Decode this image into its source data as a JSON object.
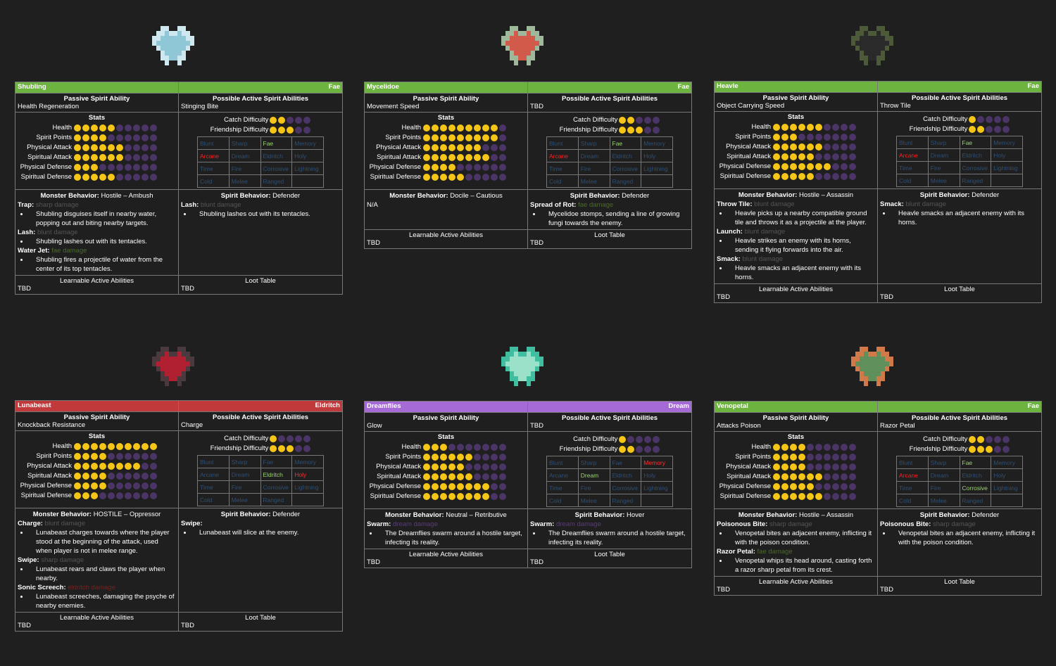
{
  "labels": {
    "passive": "Passive Spirit Ability",
    "active": "Possible Active Spirit Abilities",
    "stats": "Stats",
    "health": "Health",
    "spirit_points": "Spirit Points",
    "physical_attack": "Physical Attack",
    "spiritual_attack": "Spiritual Attack",
    "physical_defense": "Physical Defense",
    "spiritual_defense": "Spiritual Defense",
    "catch": "Catch Difficulty",
    "friendship": "Friendship Difficulty",
    "monster_behavior": "Monster Behavior:",
    "spirit_behavior": "Spirit Behavior:",
    "learnable": "Learnable Active Abilities",
    "loot": "Loot Table",
    "types": [
      "Blunt",
      "Sharp",
      "Fae",
      "Memory",
      "Arcane",
      "Dream",
      "Eldritch",
      "Holy",
      "Time",
      "Fire",
      "Corrosive",
      "Lightning",
      "Cold",
      "Melee",
      "Ranged"
    ]
  },
  "colors": {
    "fae": "#6db33f",
    "eldritch": "#c0393b",
    "dream": "#a56ad6",
    "dot_on": "#f5c517",
    "dot_off": "#4a3566"
  },
  "monsters": [
    {
      "name": "Shubling",
      "type": "Fae",
      "passive": "Health Regeneration",
      "active": "Stinging Bite",
      "stats": [
        5,
        4,
        6,
        6,
        3,
        5
      ],
      "catch": 2,
      "friendship": 3,
      "active_types": [
        "Fae",
        "Arcane"
      ],
      "monster_behavior": "Hostile – Ambush",
      "monster_moves": [
        {
          "name": "Trap:",
          "dmg": "sharp damage",
          "desc": "Shubling disguises itself in nearby water, popping out and biting nearby targets."
        },
        {
          "name": "Lash:",
          "dmg": "blunt damage",
          "desc": "Shubling lashes out with its tentacles."
        },
        {
          "name": "Water Jet:",
          "dmg": "fae damage",
          "desc": "Shubling fires a projectile of water from the center of its top tentacles."
        }
      ],
      "spirit_behavior": "Defender",
      "spirit_moves": [
        {
          "name": "Lash:",
          "dmg": "blunt damage",
          "desc": "Shubling lashes out with its tentacles."
        }
      ],
      "learnable": "TBD",
      "loot": "TBD"
    },
    {
      "name": "Mycelidoe",
      "type": "Fae",
      "passive": "Movement Speed",
      "active": "TBD",
      "stats": [
        9,
        9,
        7,
        8,
        4,
        5
      ],
      "catch": 2,
      "friendship": 3,
      "active_types": [
        "Fae",
        "Arcane"
      ],
      "monster_behavior": "Docile – Cautious",
      "monster_moves": [],
      "monster_na": "N/A",
      "spirit_behavior": "Defender",
      "spirit_moves": [
        {
          "name": "Spread of Rot:",
          "dmg": "fae damage",
          "desc": "Mycelidoe stomps, sending a line of growing fungi towards the enemy."
        }
      ],
      "learnable": "TBD",
      "loot": "TBD"
    },
    {
      "name": "Heavle",
      "type": "Fae",
      "passive": "Object Carrying Speed",
      "active": "Throw Tile",
      "stats": [
        6,
        3,
        6,
        5,
        7,
        5
      ],
      "catch": 1,
      "friendship": 2,
      "active_types": [
        "Fae",
        "Arcane"
      ],
      "monster_behavior": "Hostile – Assassin",
      "monster_moves": [
        {
          "name": "Throw Tile:",
          "dmg": "blunt damage",
          "desc": "Heavle picks up a nearby compatible ground tile and throws it as a projectile at the player."
        },
        {
          "name": "Launch:",
          "dmg": "blunt damage",
          "desc": "Heavle strikes an enemy with its horns, sending it flying forwards into the air."
        },
        {
          "name": "Smack:",
          "dmg": "blunt damage",
          "desc": "Heavle smacks an adjacent enemy with its horns."
        }
      ],
      "spirit_behavior": "Defender",
      "spirit_moves": [
        {
          "name": "Smack:",
          "dmg": "blunt damage",
          "desc": "Heavle smacks an adjacent enemy with its horns."
        }
      ],
      "learnable": "TBD",
      "loot": "TBD"
    },
    {
      "name": "Lunabeast",
      "type": "Eldritch",
      "passive": "Knockback Resistance",
      "active": "Charge",
      "stats": [
        10,
        4,
        8,
        4,
        4,
        3
      ],
      "catch": 1,
      "friendship": 3,
      "active_types": [
        "Eldritch",
        "Holy"
      ],
      "monster_behavior": "HOSTILE – Oppressor",
      "monster_moves": [
        {
          "name": "Charge:",
          "dmg": "blunt damage",
          "desc": "Lunabeast charges towards where the player stood at the beginning of the attack, used when player is not in melee range."
        },
        {
          "name": "Swipe:",
          "dmg": "sharp damage",
          "desc": "Lunabeast rears and claws the player when nearby."
        },
        {
          "name": "Sonic Screech:",
          "dmg": "eldritch damage",
          "desc": "Lunabeast screeches, damaging the psyche of nearby enemies."
        }
      ],
      "spirit_behavior": "Defender",
      "spirit_moves": [
        {
          "name": "Swipe:",
          "dmg": "",
          "desc": "Lunabeast will slice at the enemy."
        }
      ],
      "learnable": "TBD",
      "loot": "TBD"
    },
    {
      "name": "Dreamflies",
      "type": "Dream",
      "passive": "Glow",
      "active": "TBD",
      "stats": [
        3,
        6,
        5,
        6,
        8,
        8
      ],
      "catch": 1,
      "friendship": 2,
      "active_types": [
        "Memory",
        "Dream"
      ],
      "monster_behavior": "Neutral – Retributive",
      "monster_moves": [
        {
          "name": "Swarm:",
          "dmg": "dream damage",
          "desc": "The Dreamflies swarm around a hostile target, infecting its reality."
        }
      ],
      "spirit_behavior": "Hover",
      "spirit_moves": [
        {
          "name": "Swarm:",
          "dmg": "dream damage",
          "desc": "The Dreamflies swarm around a hostile target, infecting its reality."
        }
      ],
      "learnable": "TBD",
      "loot": "TBD"
    },
    {
      "name": "Venopetal",
      "type": "Fae",
      "passive": "Attacks Poison",
      "active": "Razor Petal",
      "stats": [
        4,
        4,
        4,
        6,
        5,
        6
      ],
      "catch": 2,
      "friendship": 3,
      "active_types": [
        "Fae",
        "Arcane",
        "Corrosive"
      ],
      "monster_behavior": "Hostile – Assassin",
      "monster_moves": [
        {
          "name": "Poisonous Bite:",
          "dmg": "sharp damage",
          "desc": "Venopetal bites an adjacent enemy, inflicting it with the poison condition."
        },
        {
          "name": "Razor Petal:",
          "dmg": "fae damage",
          "desc": "Venopetal whips its head around, casting forth a razor sharp petal from its crest."
        }
      ],
      "spirit_behavior": "Defender",
      "spirit_moves": [
        {
          "name": "Poisonous Bite:",
          "dmg": "sharp damage",
          "desc": "Venopetal bites an adjacent enemy, inflicting it with the poison condition."
        }
      ],
      "learnable": "TBD",
      "loot": "TBD"
    }
  ]
}
